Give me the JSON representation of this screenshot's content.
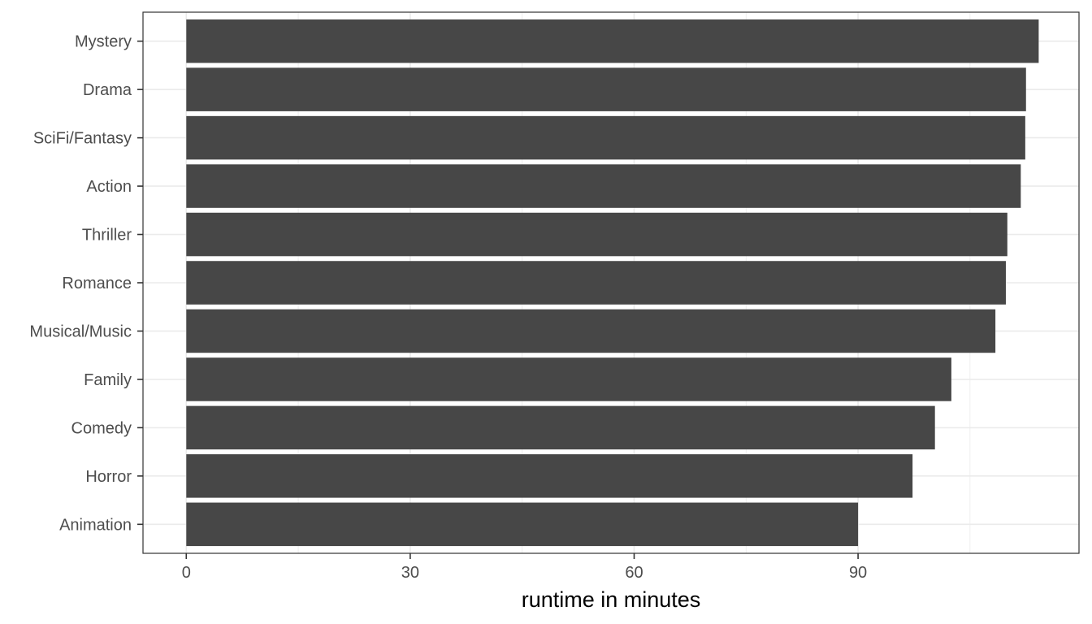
{
  "chart_data": {
    "type": "bar",
    "orientation": "horizontal",
    "categories": [
      "Mystery",
      "Drama",
      "SciFi/Fantasy",
      "Action",
      "Thriller",
      "Romance",
      "Musical/Music",
      "Family",
      "Comedy",
      "Horror",
      "Animation"
    ],
    "values": [
      114.2,
      112.5,
      112.4,
      111.8,
      110.0,
      109.8,
      108.4,
      102.5,
      100.3,
      97.3,
      90.0
    ],
    "title": "",
    "xlabel": "runtime in minutes",
    "ylabel": "",
    "xlim": [
      -5.8,
      119.6
    ],
    "xticks": [
      0,
      30,
      60,
      90
    ],
    "grid": true,
    "legend": "none",
    "colors": {
      "bar": "#474747",
      "panel_border": "#333333",
      "grid": "#ebebeb",
      "tick": "#333333"
    }
  }
}
